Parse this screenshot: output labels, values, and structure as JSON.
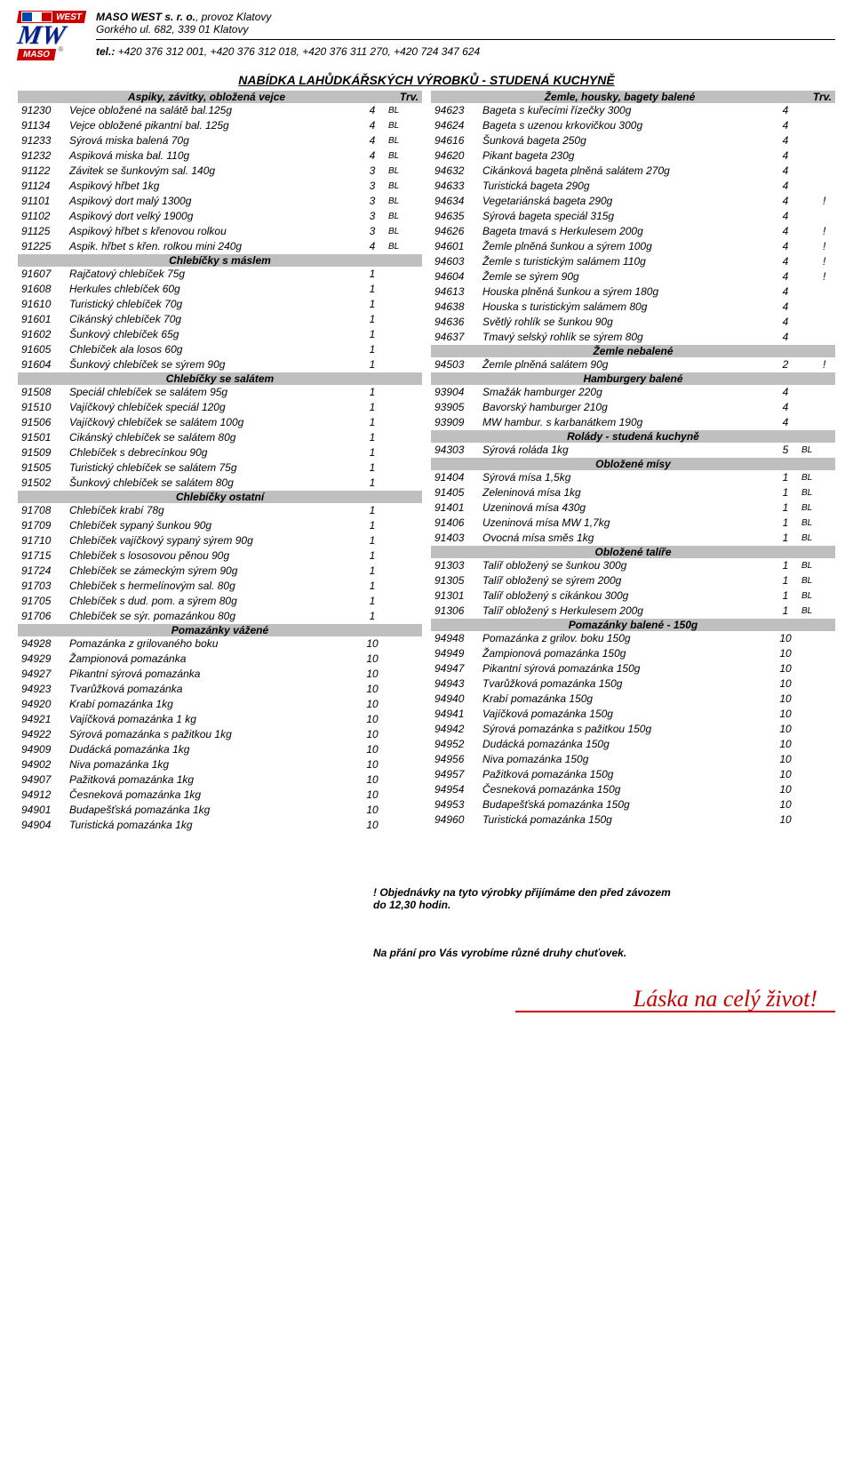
{
  "company": {
    "name": "MASO WEST s. r. o.",
    "suffix": ", provoz Klatovy",
    "address": "Gorkého ul. 682, 339 01 Klatovy",
    "tel_label": "tel.:",
    "tel": " +420 376 312 001, +420 376 312 018, +420 376 311 270, +420 724 347 624",
    "logo_west": "WEST",
    "logo_mw": "MW",
    "logo_maso": "MASO"
  },
  "title": "NABÍDKA LAHŮDKÁŘSKÝCH VÝROBKŮ - STUDENÁ KUCHYNĚ",
  "trv_label": "Trv.",
  "left_sections": [
    {
      "head": "Aspiky, závitky, obložená vejce",
      "show_trv": true,
      "rows": [
        {
          "code": "91230",
          "name": "Vejce obložené na salátě bal.125g",
          "qty": "4",
          "bl": "BL"
        },
        {
          "code": "91134",
          "name": "Vejce obložené pikantní bal. 125g",
          "qty": "4",
          "bl": "BL"
        },
        {
          "code": "91233",
          "name": "Sýrová miska balená 70g",
          "qty": "4",
          "bl": "BL"
        },
        {
          "code": "91232",
          "name": "Aspiková miska bal. 110g",
          "qty": "4",
          "bl": "BL"
        },
        {
          "code": "91122",
          "name": "Závitek se šunkovým sal. 140g",
          "qty": "3",
          "bl": "BL"
        },
        {
          "code": "91124",
          "name": "Aspikový hřbet 1kg",
          "qty": "3",
          "bl": "BL"
        },
        {
          "code": "91101",
          "name": "Aspikový dort malý 1300g",
          "qty": "3",
          "bl": "BL"
        },
        {
          "code": "91102",
          "name": "Aspikový dort velký 1900g",
          "qty": "3",
          "bl": "BL"
        },
        {
          "code": "91125",
          "name": "Aspikový hřbet s křenovou rolkou",
          "qty": "3",
          "bl": "BL"
        },
        {
          "code": "91225",
          "name": "Aspik. hřbet s křen. rolkou mini 240g",
          "qty": "4",
          "bl": "BL"
        }
      ]
    },
    {
      "head": "Chlebíčky s máslem",
      "rows": [
        {
          "code": "91607",
          "name": "Rajčatový chlebíček 75g",
          "qty": "1"
        },
        {
          "code": "91608",
          "name": "Herkules chlebíček 60g",
          "qty": "1"
        },
        {
          "code": "91610",
          "name": "Turistický chlebíček 70g",
          "qty": "1"
        },
        {
          "code": "91601",
          "name": "Cikánský chlebíček 70g",
          "qty": "1"
        },
        {
          "code": "91602",
          "name": "Šunkový chlebíček 65g",
          "qty": "1"
        },
        {
          "code": "91605",
          "name": "Chlebíček ala losos 60g",
          "qty": "1"
        },
        {
          "code": "91604",
          "name": "Šunkový chlebíček se sýrem 90g",
          "qty": "1"
        }
      ]
    },
    {
      "head": "Chlebíčky se salátem",
      "rows": [
        {
          "code": "91508",
          "name": "Speciál chlebíček se salátem 95g",
          "qty": "1"
        },
        {
          "code": "91510",
          "name": "Vajíčkový chlebíček speciál 120g",
          "qty": "1"
        },
        {
          "code": "91506",
          "name": "Vajíčkový chlebíček se salátem 100g",
          "qty": "1"
        },
        {
          "code": "91501",
          "name": "Cikánský chlebíček se salátem 80g",
          "qty": "1"
        },
        {
          "code": "91509",
          "name": "Chlebíček s debrecínkou 90g",
          "qty": "1"
        },
        {
          "code": "91505",
          "name": "Turistický chlebíček se salátem 75g",
          "qty": "1"
        },
        {
          "code": "91502",
          "name": "Šunkový chlebíček se salátem 80g",
          "qty": "1"
        }
      ]
    },
    {
      "head": "Chlebíčky ostatní",
      "rows": [
        {
          "code": "91708",
          "name": "Chlebíček krabí 78g",
          "qty": "1"
        },
        {
          "code": "91709",
          "name": "Chlebíček sypaný šunkou 90g",
          "qty": "1"
        },
        {
          "code": "91710",
          "name": "Chlebíček vajíčkový sypaný sýrem 90g",
          "qty": "1"
        },
        {
          "code": "91715",
          "name": "Chlebíček s lososovou pěnou 90g",
          "qty": "1"
        },
        {
          "code": "91724",
          "name": "Chlebíček se zámeckým sýrem 90g",
          "qty": "1"
        },
        {
          "code": "91703",
          "name": "Chlebíček s hermelínovým sal. 80g",
          "qty": "1"
        },
        {
          "code": "91705",
          "name": "Chlebíček s dud. pom. a sýrem 80g",
          "qty": "1"
        },
        {
          "code": "91706",
          "name": "Chlebíček se sýr. pomazánkou 80g",
          "qty": "1"
        }
      ]
    },
    {
      "head": "Pomazánky vážené",
      "rows": [
        {
          "code": "94928",
          "name": "Pomazánka z grilovaného boku",
          "qty": "10"
        },
        {
          "code": "94929",
          "name": "Žampionová pomazánka",
          "qty": "10"
        },
        {
          "code": "94927",
          "name": "Pikantní sýrová pomazánka",
          "qty": "10"
        },
        {
          "code": "94923",
          "name": "Tvarůžková pomazánka",
          "qty": "10"
        },
        {
          "code": "94920",
          "name": "Krabí pomazánka 1kg",
          "qty": "10"
        },
        {
          "code": "94921",
          "name": "Vajíčková pomazánka 1 kg",
          "qty": "10"
        },
        {
          "code": "94922",
          "name": "Sýrová pomazánka s pažitkou 1kg",
          "qty": "10"
        },
        {
          "code": "94909",
          "name": "Dudácká pomazánka 1kg",
          "qty": "10"
        },
        {
          "code": "94902",
          "name": "Niva pomazánka 1kg",
          "qty": "10"
        },
        {
          "code": "94907",
          "name": "Pažitková pomazánka 1kg",
          "qty": "10"
        },
        {
          "code": "94912",
          "name": "Česneková pomazánka 1kg",
          "qty": "10"
        },
        {
          "code": "94901",
          "name": "Budapešťská pomazánka 1kg",
          "qty": "10"
        },
        {
          "code": "94904",
          "name": "Turistická pomazánka 1kg",
          "qty": "10"
        }
      ]
    }
  ],
  "right_sections": [
    {
      "head": "Žemle, housky, bagety balené",
      "show_trv": true,
      "rows": [
        {
          "code": "94623",
          "name": "Bageta s kuřecími řízečky 300g",
          "qty": "4"
        },
        {
          "code": "94624",
          "name": "Bageta s uzenou krkovičkou 300g",
          "qty": "4"
        },
        {
          "code": "94616",
          "name": "Šunková bageta 250g",
          "qty": "4"
        },
        {
          "code": "94620",
          "name": "Pikant bageta 230g",
          "qty": "4"
        },
        {
          "code": "94632",
          "name": "Cikánková bageta plněná salátem 270g",
          "qty": "4"
        },
        {
          "code": "94633",
          "name": "Turistická bageta 290g",
          "qty": "4"
        },
        {
          "code": "94634",
          "name": "Vegetariánská bageta 290g",
          "qty": "4",
          "bang": "!"
        },
        {
          "code": "94635",
          "name": "Sýrová bageta speciál 315g",
          "qty": "4"
        },
        {
          "code": "94626",
          "name": "Bageta tmavá s Herkulesem 200g",
          "qty": "4",
          "bang": "!"
        },
        {
          "code": "94601",
          "name": "Žemle plněná šunkou a sýrem 100g",
          "qty": "4",
          "bang": "!"
        },
        {
          "code": "94603",
          "name": "Žemle s turistickým salámem 110g",
          "qty": "4",
          "bang": "!"
        },
        {
          "code": "94604",
          "name": "Žemle se sýrem 90g",
          "qty": "4",
          "bang": "!"
        },
        {
          "code": "94613",
          "name": "Houska plněná šunkou a sýrem 180g",
          "qty": "4"
        },
        {
          "code": "94638",
          "name": "Houska s turistickým salámem 80g",
          "qty": "4"
        },
        {
          "code": "94636",
          "name": "Světlý rohlík se šunkou 90g",
          "qty": "4"
        },
        {
          "code": "94637",
          "name": "Tmavý selský rohlík se sýrem 80g",
          "qty": "4"
        }
      ]
    },
    {
      "head": "Žemle nebalené",
      "rows": [
        {
          "code": "94503",
          "name": "Žemle plněná salátem 90g",
          "qty": "2",
          "bang": "!"
        }
      ]
    },
    {
      "head": "Hamburgery balené",
      "rows": [
        {
          "code": "93904",
          "name": "Smažák hamburger 220g",
          "qty": "4"
        },
        {
          "code": "93905",
          "name": "Bavorský hamburger 210g",
          "qty": "4"
        },
        {
          "code": "93909",
          "name": "MW hambur. s karbanátkem 190g",
          "qty": "4"
        }
      ]
    },
    {
      "head": "Rolády - studená kuchyně",
      "rows": [
        {
          "code": "94303",
          "name": "Sýrová roláda 1kg",
          "qty": "5",
          "bl": "BL"
        }
      ]
    },
    {
      "head": "Obložené mísy",
      "rows": [
        {
          "code": "91404",
          "name": "Sýrová mísa 1,5kg",
          "qty": "1",
          "bl": "BL"
        },
        {
          "code": "91405",
          "name": "Zeleninová mísa 1kg",
          "qty": "1",
          "bl": "BL"
        },
        {
          "code": "91401",
          "name": "Uzeninová mísa 430g",
          "qty": "1",
          "bl": "BL"
        },
        {
          "code": "91406",
          "name": "Uzeninová mísa MW 1,7kg",
          "qty": "1",
          "bl": "BL"
        },
        {
          "code": "91403",
          "name": "Ovocná mísa směs 1kg",
          "qty": "1",
          "bl": "BL"
        }
      ]
    },
    {
      "head": "Obložené talíře",
      "rows": [
        {
          "code": "91303",
          "name": "Talíř obložený se šunkou 300g",
          "qty": "1",
          "bl": "BL"
        },
        {
          "code": "91305",
          "name": "Talíř obložený se sýrem 200g",
          "qty": "1",
          "bl": "BL"
        },
        {
          "code": "91301",
          "name": "Talíř obložený s cikánkou 300g",
          "qty": "1",
          "bl": "BL"
        },
        {
          "code": "91306",
          "name": "Talíř obložený s Herkulesem 200g",
          "qty": "1",
          "bl": "BL"
        }
      ]
    },
    {
      "head": "Pomazánky balené - 150g",
      "rows": [
        {
          "code": "94948",
          "name": "Pomazánka z grilov. boku 150g",
          "qty": "10"
        },
        {
          "code": "94949",
          "name": "Žampionová pomazánka 150g",
          "qty": "10"
        },
        {
          "code": "94947",
          "name": "Pikantní sýrová pomazánka 150g",
          "qty": "10"
        },
        {
          "code": "94943",
          "name": "Tvarůžková pomazánka 150g",
          "qty": "10"
        },
        {
          "code": "94940",
          "name": "Krabí pomazánka 150g",
          "qty": "10"
        },
        {
          "code": "94941",
          "name": "Vajíčková pomazánka 150g",
          "qty": "10"
        },
        {
          "code": "94942",
          "name": "Sýrová pomazánka s pažitkou 150g",
          "qty": "10"
        },
        {
          "code": "94952",
          "name": "Dudácká pomazánka 150g",
          "qty": "10"
        },
        {
          "code": "94956",
          "name": "Niva pomazánka 150g",
          "qty": "10"
        },
        {
          "code": "94957",
          "name": "Pažitková pomazánka 150g",
          "qty": "10"
        },
        {
          "code": "94954",
          "name": "Česneková pomazánka 150g",
          "qty": "10"
        },
        {
          "code": "94953",
          "name": "Budapešťská pomazánka 150g",
          "qty": "10"
        },
        {
          "code": "94960",
          "name": "Turistická pomazánka 150g",
          "qty": "10"
        }
      ]
    }
  ],
  "notice1": "! Objednávky na tyto výrobky přijímáme den před závozem",
  "notice1b": "do 12,30 hodin.",
  "notice2": "Na přání pro Vás vyrobíme různé druhy chuťovek.",
  "footer": "Láska na celý život!"
}
